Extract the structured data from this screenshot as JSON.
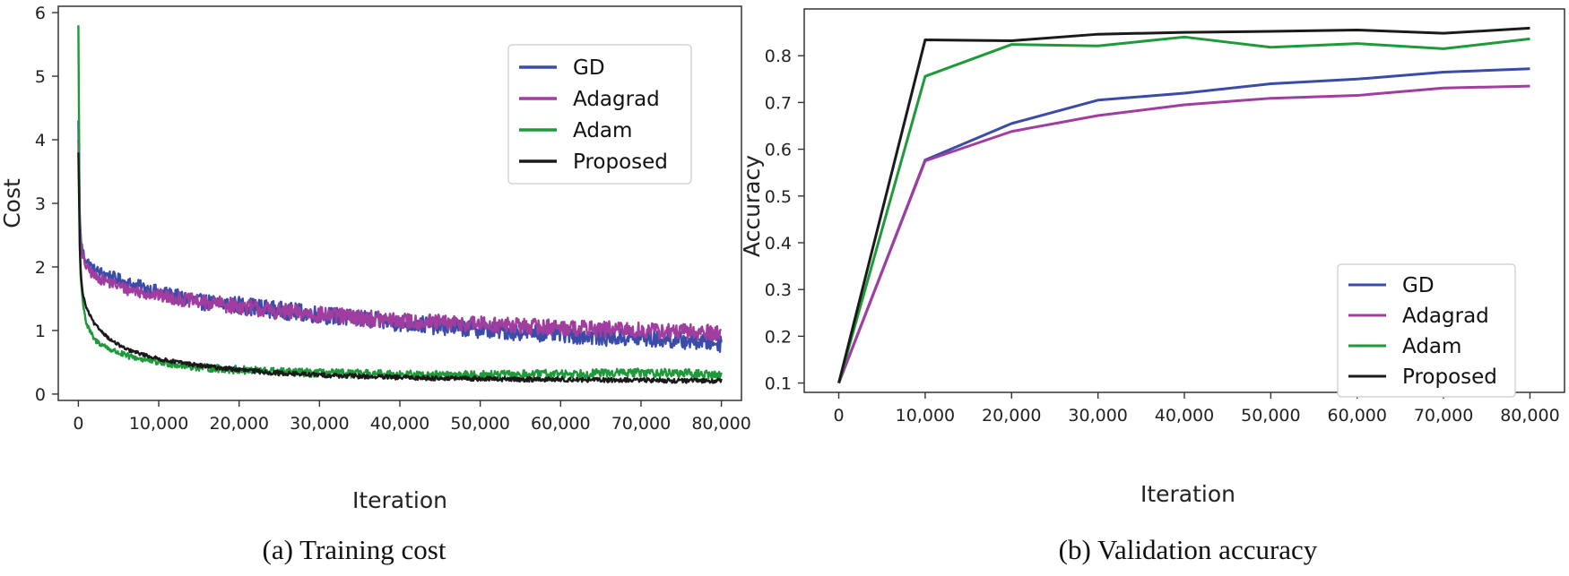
{
  "colors": {
    "GD": "#3b4ba8",
    "Adagrad": "#a23da0",
    "Adam": "#1f9a3a",
    "Proposed": "#1a1a1a"
  },
  "chart_data": [
    {
      "type": "line",
      "title": "",
      "caption": "(a) Training cost",
      "xlabel": "Iteration",
      "ylabel": "Cost",
      "xlim": [
        -2500,
        82500
      ],
      "ylim": [
        -0.1,
        6.1
      ],
      "xticks": [
        0,
        10000,
        20000,
        30000,
        40000,
        50000,
        60000,
        70000,
        80000
      ],
      "xtick_labels": [
        "0",
        "10,000",
        "20,000",
        "30,000",
        "40,000",
        "50,000",
        "60,000",
        "70,000",
        "80,000"
      ],
      "yticks": [
        0,
        1,
        2,
        3,
        4,
        5,
        6
      ],
      "ytick_labels": [
        "0",
        "1",
        "2",
        "3",
        "4",
        "5",
        "6"
      ],
      "legend": "top-right",
      "grid": false,
      "series": [
        {
          "name": "GD",
          "x": [
            0,
            200,
            500,
            1000,
            2000,
            4000,
            6000,
            10000,
            15000,
            20000,
            25000,
            30000,
            35000,
            40000,
            45000,
            50000,
            55000,
            60000,
            65000,
            70000,
            75000,
            80000
          ],
          "y": [
            4.3,
            2.6,
            2.25,
            2.1,
            1.95,
            1.85,
            1.75,
            1.6,
            1.45,
            1.4,
            1.32,
            1.25,
            1.18,
            1.12,
            1.07,
            1.02,
            0.98,
            0.95,
            0.9,
            0.88,
            0.85,
            0.8
          ]
        },
        {
          "name": "Adagrad",
          "x": [
            0,
            200,
            500,
            1000,
            2000,
            4000,
            6000,
            10000,
            15000,
            20000,
            25000,
            30000,
            35000,
            40000,
            45000,
            50000,
            55000,
            60000,
            65000,
            70000,
            75000,
            80000
          ],
          "y": [
            4.0,
            2.5,
            2.15,
            2.0,
            1.85,
            1.75,
            1.65,
            1.55,
            1.45,
            1.38,
            1.3,
            1.25,
            1.2,
            1.15,
            1.12,
            1.1,
            1.07,
            1.05,
            1.02,
            1.0,
            0.98,
            0.97
          ]
        },
        {
          "name": "Adam",
          "x": [
            0,
            200,
            500,
            1000,
            2000,
            4000,
            6000,
            10000,
            15000,
            20000,
            25000,
            30000,
            35000,
            40000,
            45000,
            50000,
            55000,
            60000,
            65000,
            70000,
            75000,
            80000
          ],
          "y": [
            5.8,
            2.0,
            1.5,
            1.1,
            0.85,
            0.7,
            0.6,
            0.5,
            0.42,
            0.38,
            0.35,
            0.33,
            0.32,
            0.31,
            0.3,
            0.3,
            0.31,
            0.32,
            0.33,
            0.34,
            0.33,
            0.3
          ]
        },
        {
          "name": "Proposed",
          "x": [
            0,
            200,
            500,
            1000,
            2000,
            4000,
            6000,
            10000,
            15000,
            20000,
            25000,
            30000,
            35000,
            40000,
            45000,
            50000,
            55000,
            60000,
            65000,
            70000,
            75000,
            80000
          ],
          "y": [
            3.8,
            2.1,
            1.6,
            1.35,
            1.1,
            0.85,
            0.7,
            0.55,
            0.45,
            0.38,
            0.33,
            0.3,
            0.28,
            0.26,
            0.25,
            0.24,
            0.23,
            0.23,
            0.22,
            0.22,
            0.21,
            0.21
          ]
        }
      ]
    },
    {
      "type": "line",
      "title": "",
      "caption": "(b) Validation accuracy",
      "xlabel": "Iteration",
      "ylabel": "Accuracy",
      "xlim": [
        -4000,
        84000
      ],
      "ylim": [
        0.08,
        0.9
      ],
      "xticks": [
        0,
        10000,
        20000,
        30000,
        40000,
        50000,
        60000,
        70000,
        80000
      ],
      "xtick_labels": [
        "0",
        "10,000",
        "20,000",
        "30,000",
        "40,000",
        "50,000",
        "60,000",
        "70,000",
        "80,000"
      ],
      "yticks": [
        0.1,
        0.2,
        0.3,
        0.4,
        0.5,
        0.6,
        0.7,
        0.8
      ],
      "ytick_labels": [
        "0.1",
        "0.2",
        "0.3",
        "0.4",
        "0.5",
        "0.6",
        "0.7",
        "0.8"
      ],
      "legend": "lower-right",
      "grid": false,
      "series": [
        {
          "name": "GD",
          "x": [
            0,
            10000,
            20000,
            30000,
            40000,
            50000,
            60000,
            70000,
            80000
          ],
          "y": [
            0.1,
            0.577,
            0.655,
            0.705,
            0.72,
            0.74,
            0.75,
            0.765,
            0.772
          ]
        },
        {
          "name": "Adagrad",
          "x": [
            0,
            10000,
            20000,
            30000,
            40000,
            50000,
            60000,
            70000,
            80000
          ],
          "y": [
            0.1,
            0.575,
            0.638,
            0.672,
            0.695,
            0.709,
            0.715,
            0.731,
            0.735
          ]
        },
        {
          "name": "Adam",
          "x": [
            0,
            10000,
            20000,
            30000,
            40000,
            50000,
            60000,
            70000,
            80000
          ],
          "y": [
            0.1,
            0.756,
            0.824,
            0.821,
            0.84,
            0.818,
            0.826,
            0.815,
            0.836
          ]
        },
        {
          "name": "Proposed",
          "x": [
            0,
            10000,
            20000,
            30000,
            40000,
            50000,
            60000,
            70000,
            80000
          ],
          "y": [
            0.1,
            0.834,
            0.832,
            0.846,
            0.85,
            0.852,
            0.855,
            0.848,
            0.859
          ]
        }
      ]
    }
  ]
}
